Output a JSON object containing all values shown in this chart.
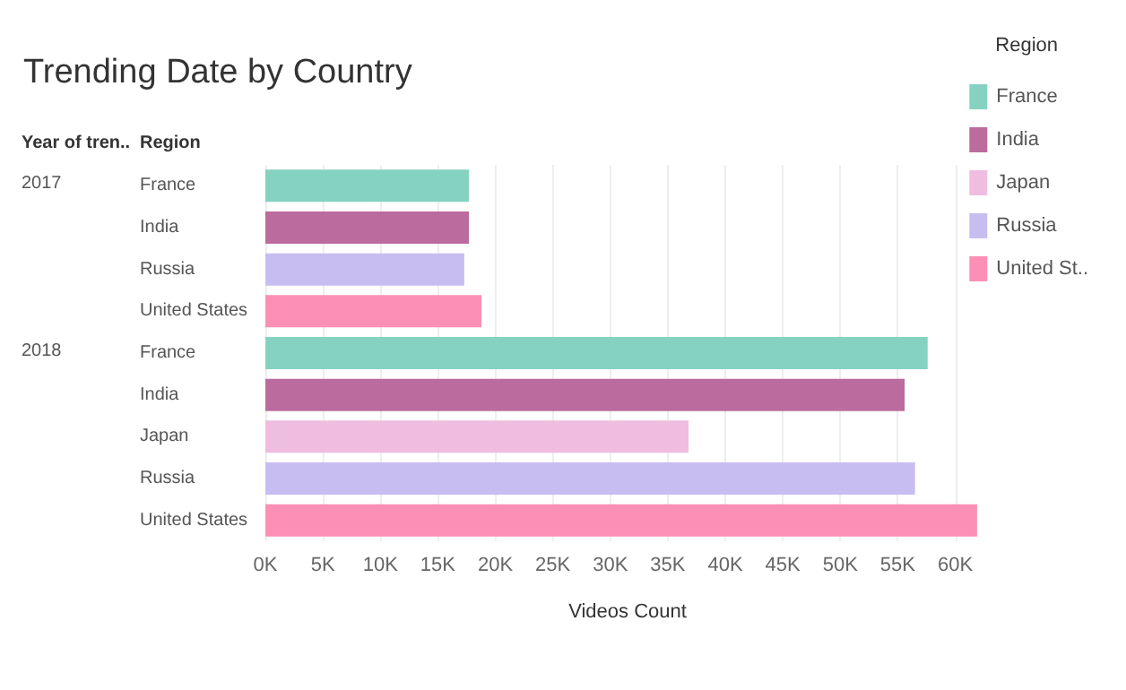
{
  "chart_data": {
    "type": "bar",
    "orientation": "horizontal",
    "stacked": true,
    "title": "Trending Date by Country",
    "xlabel": "Videos Count",
    "legend_title": "Region",
    "legend": "right",
    "grid": "x",
    "categories": [
      "France",
      "India",
      "Russia",
      "United States",
      "France",
      "India",
      "Japan",
      "Russia",
      "United States"
    ],
    "annotations": [
      "Year of tren..",
      "Region",
      "2017",
      "2018"
    ],
    "series": [
      {
        "name": "France",
        "color": "#85d2c0",
        "values": [
          17.7,
          null,
          null,
          null,
          57.6,
          null,
          null,
          null,
          null
        ]
      },
      {
        "name": "India",
        "color": "#bb6b9e",
        "values": [
          null,
          17.7,
          null,
          null,
          null,
          55.6,
          null,
          null,
          null
        ]
      },
      {
        "name": "Japan",
        "color": "#efbddf",
        "values": [
          null,
          null,
          null,
          null,
          null,
          null,
          36.8,
          null,
          null
        ]
      },
      {
        "name": "Russia",
        "color": "#c8bdf1",
        "values": [
          null,
          null,
          17.3,
          null,
          null,
          null,
          null,
          56.5,
          null
        ]
      },
      {
        "name": "United St..",
        "color": "#fc8fb5",
        "values": [
          null,
          null,
          null,
          18.8,
          null,
          null,
          null,
          null,
          61.9
        ]
      }
    ],
    "xlim": [
      0,
      63
    ],
    "xticks": [
      {
        "value": 0,
        "label": "0K"
      },
      {
        "value": 5,
        "label": "5K"
      },
      {
        "value": 10,
        "label": "10K"
      },
      {
        "value": 15,
        "label": "15K"
      },
      {
        "value": 20,
        "label": "20K"
      },
      {
        "value": 25,
        "label": "25K"
      },
      {
        "value": 30,
        "label": "30K"
      },
      {
        "value": 35,
        "label": "35K"
      },
      {
        "value": 40,
        "label": "40K"
      },
      {
        "value": 45,
        "label": "45K"
      },
      {
        "value": 50,
        "label": "50K"
      },
      {
        "value": 55,
        "label": "55K"
      },
      {
        "value": 60,
        "label": "60K"
      }
    ]
  }
}
